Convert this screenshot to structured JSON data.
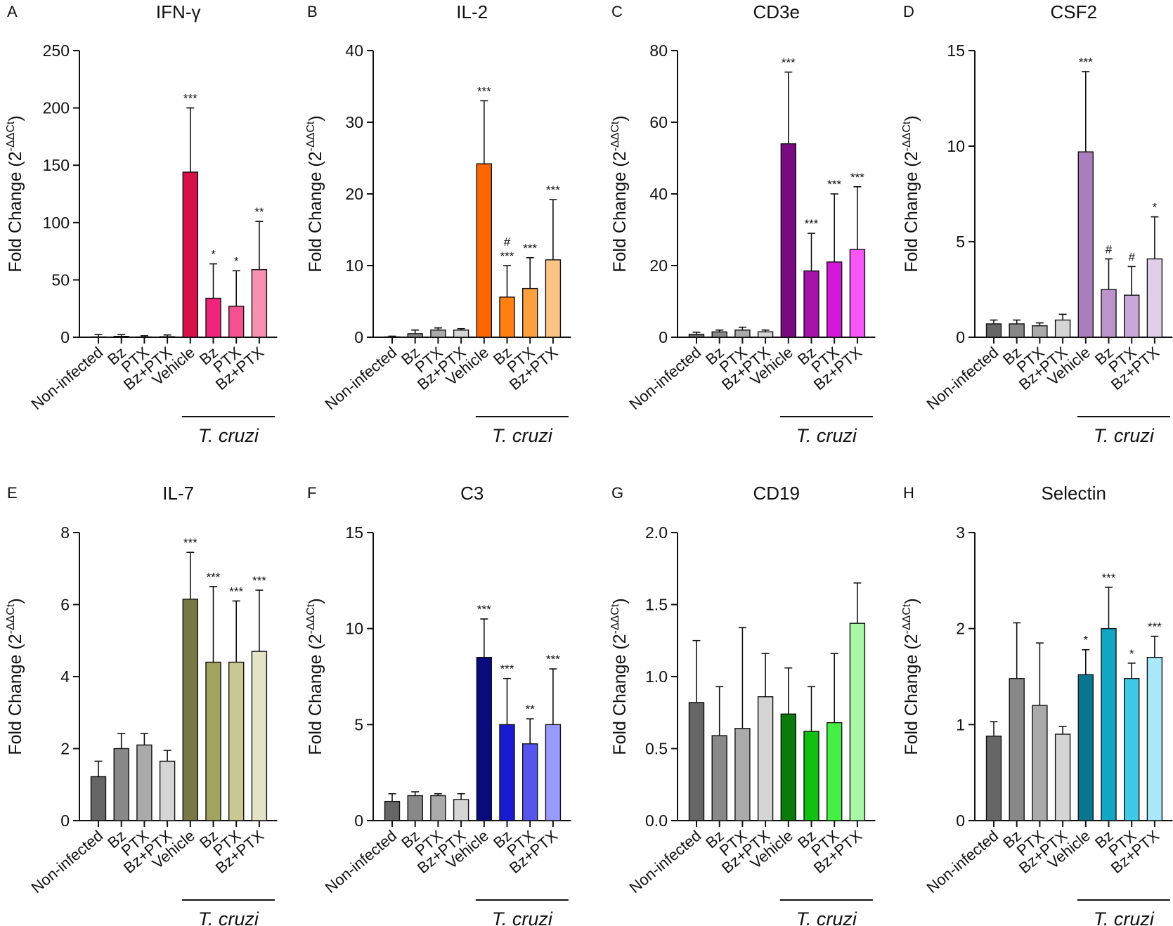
{
  "chart_data": [
    {
      "type": "bar",
      "panel_label": "A",
      "title": "IFN-γ",
      "ylabel": "Fold Change (2^-ΔΔCt)",
      "ylim": [
        0,
        250
      ],
      "yticks": [
        "0",
        "50",
        "100",
        "150",
        "200",
        "250"
      ],
      "categories": [
        "Non-infected",
        "Bz",
        "PTX",
        "Bz+PTX",
        "Vehicle",
        "Bz",
        "PTX",
        "Bz+PTX"
      ],
      "values": [
        0.3,
        0.8,
        0.3,
        0.5,
        144,
        34,
        27,
        59
      ],
      "errors": [
        2,
        1.5,
        1,
        1.5,
        56,
        30,
        31,
        42
      ],
      "significance": [
        "",
        "",
        "",
        "",
        "***",
        "*",
        "*",
        "**"
      ],
      "colors": [
        "#666666",
        "#888888",
        "#aaaaaa",
        "#d5d5d5",
        "#d6114a",
        "#f0247a",
        "#f5508f",
        "#f890b2"
      ],
      "group_label": "T. cruzi",
      "group_start": 4
    },
    {
      "type": "bar",
      "panel_label": "B",
      "title": "IL-2",
      "ylabel": "Fold Change (2^-ΔΔCt)",
      "ylim": [
        0,
        40
      ],
      "yticks": [
        "0",
        "10",
        "20",
        "30",
        "40"
      ],
      "categories": [
        "Non-infected",
        "Bz",
        "PTX",
        "Bz+PTX",
        "Vehicle",
        "Bz",
        "PTX",
        "Bz+PTX"
      ],
      "values": [
        0.05,
        0.5,
        1.0,
        1.0,
        24.2,
        5.6,
        6.8,
        10.8
      ],
      "errors": [
        0.1,
        0.5,
        0.3,
        0.2,
        8.8,
        4.4,
        4.3,
        8.4
      ],
      "significance": [
        "",
        "",
        "",
        "",
        "***",
        "#\n***",
        "***",
        "***"
      ],
      "colors": [
        "#666666",
        "#888888",
        "#aaaaaa",
        "#d5d5d5",
        "#ff6600",
        "#ff8010",
        "#ffa040",
        "#ffc485"
      ],
      "group_label": "T. cruzi",
      "group_start": 4
    },
    {
      "type": "bar",
      "panel_label": "C",
      "title": "CD3e",
      "ylabel": "Fold Change (2^-ΔΔCt)",
      "ylim": [
        0,
        80
      ],
      "yticks": [
        "0",
        "20",
        "40",
        "60",
        "80"
      ],
      "categories": [
        "Non-infected",
        "Bz",
        "PTX",
        "Bz+PTX",
        "Vehicle",
        "Bz",
        "PTX",
        "Bz+PTX"
      ],
      "values": [
        0.8,
        1.5,
        2.0,
        1.5,
        54,
        18.5,
        21,
        24.5
      ],
      "errors": [
        0.6,
        0.5,
        0.8,
        0.5,
        20,
        10.5,
        19,
        17.5
      ],
      "significance": [
        "",
        "",
        "",
        "",
        "***",
        "***",
        "***",
        "***"
      ],
      "colors": [
        "#666666",
        "#888888",
        "#aaaaaa",
        "#d5d5d5",
        "#7a0a80",
        "#a513a8",
        "#d417d8",
        "#f857f8"
      ],
      "group_label": "T. cruzi",
      "group_start": 4
    },
    {
      "type": "bar",
      "panel_label": "D",
      "title": "CSF2",
      "ylabel": "Fold Change (2^-ΔΔCt)",
      "ylim": [
        0,
        15
      ],
      "yticks": [
        "0",
        "5",
        "10",
        "15"
      ],
      "categories": [
        "Non-infected",
        "Bz",
        "PTX",
        "Bz+PTX",
        "Vehicle",
        "Bz",
        "PTX",
        "Bz+PTX"
      ],
      "values": [
        0.7,
        0.7,
        0.6,
        0.9,
        9.7,
        2.5,
        2.2,
        4.1
      ],
      "errors": [
        0.2,
        0.2,
        0.15,
        0.3,
        4.2,
        1.6,
        1.5,
        2.2
      ],
      "significance": [
        "",
        "",
        "",
        "",
        "***",
        "#",
        "#",
        "*"
      ],
      "colors": [
        "#666666",
        "#888888",
        "#aaaaaa",
        "#d5d5d5",
        "#a87ebd",
        "#bb94cc",
        "#c8a8d8",
        "#e0cfe8"
      ],
      "group_label": "T. cruzi",
      "group_start": 4
    },
    {
      "type": "bar",
      "panel_label": "E",
      "title": "IL-7",
      "ylabel": "Fold Change (2^-ΔΔCt)",
      "ylim": [
        0,
        8
      ],
      "yticks": [
        "0",
        "2",
        "4",
        "6",
        "8"
      ],
      "categories": [
        "Non-infected",
        "Bz",
        "PTX",
        "Bz+PTX",
        "Vehicle",
        "Bz",
        "PTX",
        "Bz+PTX"
      ],
      "values": [
        1.22,
        2.0,
        2.1,
        1.65,
        6.15,
        4.4,
        4.4,
        4.7
      ],
      "errors": [
        0.43,
        0.42,
        0.32,
        0.3,
        1.3,
        2.1,
        1.7,
        1.7
      ],
      "significance": [
        "",
        "",
        "",
        "",
        "***",
        "***",
        "***",
        "***"
      ],
      "colors": [
        "#666666",
        "#888888",
        "#aaaaaa",
        "#d5d5d5",
        "#787845",
        "#a3a360",
        "#c8c890",
        "#e3e3c6"
      ],
      "group_label": "T. cruzi",
      "group_start": 4
    },
    {
      "type": "bar",
      "panel_label": "F",
      "title": "C3",
      "ylabel": "Fold Change (2^-ΔΔCt)",
      "ylim": [
        0,
        15
      ],
      "yticks": [
        "0",
        "5",
        "10",
        "15"
      ],
      "categories": [
        "Non-infected",
        "Bz",
        "PTX",
        "Bz+PTX",
        "Vehicle",
        "Bz",
        "PTX",
        "Bz+PTX"
      ],
      "values": [
        1.0,
        1.3,
        1.3,
        1.1,
        8.5,
        5.0,
        4.0,
        5.0
      ],
      "errors": [
        0.4,
        0.2,
        0.1,
        0.3,
        2.0,
        2.4,
        1.3,
        2.9
      ],
      "significance": [
        "",
        "",
        "",
        "",
        "***",
        "***",
        "**",
        "***"
      ],
      "colors": [
        "#666666",
        "#888888",
        "#aaaaaa",
        "#d5d5d5",
        "#0a0a80",
        "#1a1ad0",
        "#5555f0",
        "#9999ff"
      ],
      "group_label": "T. cruzi",
      "group_start": 4
    },
    {
      "type": "bar",
      "panel_label": "G",
      "title": "CD19",
      "ylabel": "Fold Change (2^-ΔΔCt)",
      "ylim": [
        0,
        2.0
      ],
      "yticks": [
        "0.0",
        "0.5",
        "1.0",
        "1.5",
        "2.0"
      ],
      "categories": [
        "Non-infected",
        "Bz",
        "PTX",
        "Bz+PTX",
        "Vehicle",
        "Bz",
        "PTX",
        "Bz+PTX"
      ],
      "values": [
        0.82,
        0.59,
        0.64,
        0.86,
        0.74,
        0.62,
        0.68,
        1.37
      ],
      "errors": [
        0.43,
        0.34,
        0.7,
        0.3,
        0.32,
        0.31,
        0.48,
        0.28
      ],
      "significance": [
        "",
        "",
        "",
        "",
        "",
        "",
        "",
        ""
      ],
      "colors": [
        "#666666",
        "#888888",
        "#aaaaaa",
        "#d5d5d5",
        "#0a7a0a",
        "#12c012",
        "#45f045",
        "#a8f8a8"
      ],
      "group_label": "T. cruzi",
      "group_start": 4
    },
    {
      "type": "bar",
      "panel_label": "H",
      "title": "Selectin",
      "ylabel": "Fold Change (2^-ΔΔCt)",
      "ylim": [
        0,
        3
      ],
      "yticks": [
        "0",
        "1",
        "2",
        "3"
      ],
      "categories": [
        "Non-infected",
        "Bz",
        "PTX",
        "Bz+PTX",
        "Vehicle",
        "Bz",
        "PTX",
        "Bz+PTX"
      ],
      "values": [
        0.88,
        1.48,
        1.2,
        0.9,
        1.52,
        2.0,
        1.48,
        1.7
      ],
      "errors": [
        0.15,
        0.58,
        0.65,
        0.08,
        0.26,
        0.43,
        0.16,
        0.22
      ],
      "significance": [
        "",
        "",
        "",
        "",
        "*",
        "***",
        "*",
        "***"
      ],
      "colors": [
        "#666666",
        "#888888",
        "#aaaaaa",
        "#d5d5d5",
        "#0a7590",
        "#10a6c4",
        "#40c8e8",
        "#a8e8f8"
      ],
      "group_label": "T. cruzi",
      "group_start": 4
    }
  ]
}
